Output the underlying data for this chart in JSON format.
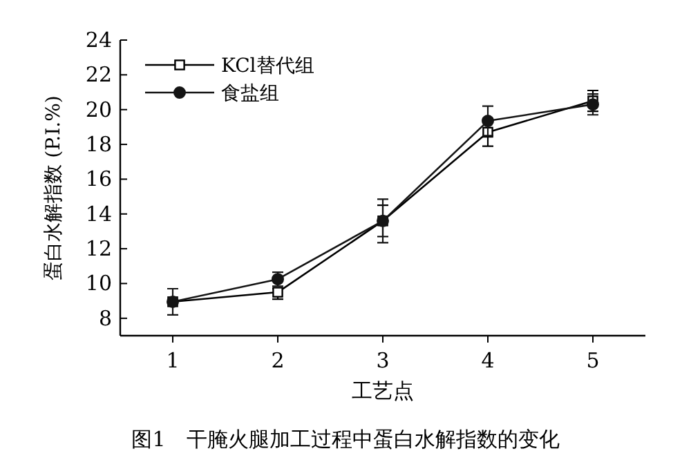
{
  "chart_data": {
    "type": "line",
    "xlabel": "工艺点",
    "ylabel": "蛋白水解指数 (P.I.%)",
    "annotations": [
      "图1　干腌火腿加工过程中蛋白水解指数的变化"
    ],
    "x": [
      1,
      2,
      3,
      4,
      5
    ],
    "xlim": [
      0.5,
      5.5
    ],
    "xticks": [
      1,
      2,
      3,
      4,
      5
    ],
    "ylim": [
      7,
      24
    ],
    "yticks": [
      8,
      10,
      12,
      14,
      16,
      18,
      20,
      22,
      24
    ],
    "legend": "top left",
    "grid": false,
    "series": [
      {
        "name": "KCl替代组",
        "color": "#000000",
        "marker": "square",
        "values": [
          8.95,
          9.5,
          13.6,
          18.7,
          20.5
        ],
        "errors": [
          null,
          [
            9.1,
            9.7
          ],
          0.9,
          0.8,
          0.6
        ]
      },
      {
        "name": "食盐组",
        "color": "#141414",
        "marker": "circle",
        "values": [
          8.95,
          10.25,
          13.6,
          19.35,
          20.3
        ],
        "errors": [
          0.75,
          0.4,
          1.25,
          0.85,
          0.6
        ]
      }
    ]
  }
}
